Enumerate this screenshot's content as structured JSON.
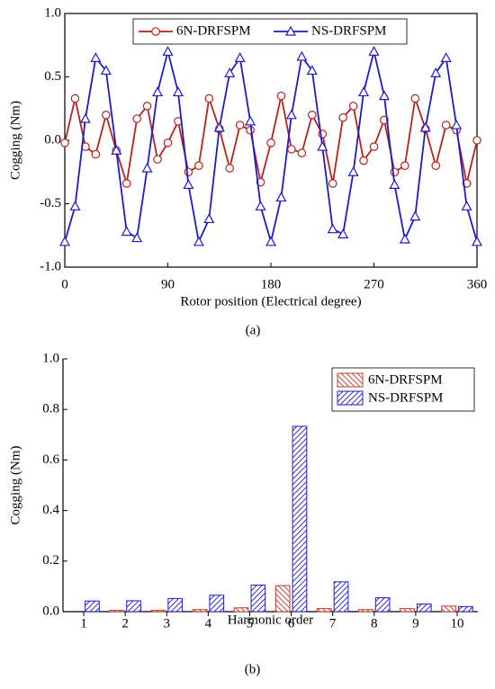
{
  "chart_data": [
    {
      "type": "line",
      "x_label": "Rotor position (Electrical degree)",
      "y_label": "Cogging (Nm)",
      "caption": "(a)",
      "x": [
        0,
        9,
        18,
        27,
        36,
        45,
        54,
        63,
        72,
        81,
        90,
        99,
        108,
        117,
        126,
        135,
        144,
        153,
        162,
        171,
        180,
        189,
        198,
        207,
        216,
        225,
        234,
        243,
        252,
        261,
        270,
        279,
        288,
        297,
        306,
        315,
        324,
        333,
        342,
        351,
        360
      ],
      "series": [
        {
          "name": "6N-DRFSPM",
          "color": "#b8231b",
          "marker": "circle",
          "values": [
            -0.02,
            0.33,
            -0.05,
            -0.11,
            0.2,
            -0.08,
            -0.34,
            0.17,
            0.27,
            -0.15,
            -0.02,
            0.15,
            -0.25,
            -0.2,
            0.33,
            0.09,
            -0.22,
            0.12,
            0.08,
            -0.33,
            -0.02,
            0.35,
            -0.07,
            -0.1,
            0.2,
            0.05,
            -0.34,
            0.18,
            0.27,
            -0.16,
            -0.05,
            0.16,
            -0.25,
            -0.2,
            0.33,
            0.09,
            -0.2,
            0.12,
            0.08,
            -0.34,
            0.0
          ]
        },
        {
          "name": "NS-DRFSPM",
          "color": "#1c1cc8",
          "marker": "triangle",
          "values": [
            -0.8,
            -0.52,
            0.17,
            0.65,
            0.55,
            -0.08,
            -0.72,
            -0.77,
            -0.22,
            0.38,
            0.7,
            0.38,
            -0.35,
            -0.8,
            -0.62,
            0.1,
            0.53,
            0.65,
            0.15,
            -0.52,
            -0.8,
            -0.45,
            0.2,
            0.66,
            0.55,
            -0.05,
            -0.7,
            -0.74,
            -0.25,
            0.38,
            0.7,
            0.35,
            -0.35,
            -0.78,
            -0.6,
            0.1,
            0.53,
            0.65,
            0.12,
            -0.52,
            -0.8
          ]
        }
      ],
      "xlim": [
        0,
        360
      ],
      "xticks": [
        0,
        90,
        180,
        270,
        360
      ],
      "ylim": [
        -1,
        1
      ],
      "yticks": [
        {
          "value": -1,
          "label": "-1.0"
        },
        -0.5,
        {
          "value": 0,
          "label": "0.0"
        },
        0.5,
        {
          "value": 1,
          "label": "1.0"
        }
      ],
      "legend": "top"
    },
    {
      "type": "bar",
      "x_label": "Harmonic order",
      "y_label": "Cogging (Nm)",
      "caption": "(b)",
      "categories": [
        "1",
        "2",
        "3",
        "4",
        "5",
        "6",
        "7",
        "8",
        "9",
        "10"
      ],
      "series": [
        {
          "name": "6N-DRFSPM",
          "color": "#c0392b",
          "hatch": "backslash",
          "values": [
            0.0,
            0.005,
            0.005,
            0.008,
            0.015,
            0.103,
            0.012,
            0.008,
            0.012,
            0.022
          ]
        },
        {
          "name": "NS-DRFSPM",
          "color": "#1c1cc8",
          "hatch": "slash",
          "values": [
            0.042,
            0.043,
            0.052,
            0.065,
            0.105,
            0.733,
            0.118,
            0.055,
            0.03,
            0.02
          ]
        }
      ],
      "ylim": [
        0,
        1
      ],
      "yticks": [
        {
          "value": 0,
          "label": "0.0"
        },
        0.2,
        0.4,
        0.6,
        0.8,
        {
          "value": 1,
          "label": "1.0"
        }
      ],
      "legend": "upper right"
    }
  ]
}
